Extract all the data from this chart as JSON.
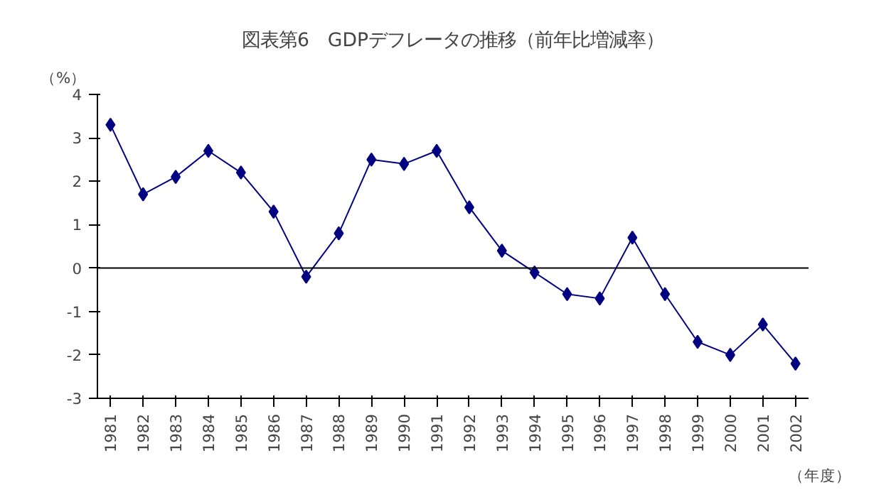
{
  "chart_data": {
    "type": "line",
    "title": "図表第6　GDPデフレータの推移（前年比増減率）",
    "ylabel": "（%）",
    "xlabel": "（年度）",
    "categories": [
      "1981",
      "1982",
      "1983",
      "1984",
      "1985",
      "1986",
      "1987",
      "1988",
      "1989",
      "1990",
      "1991",
      "1992",
      "1993",
      "1994",
      "1995",
      "1996",
      "1997",
      "1998",
      "1999",
      "2000",
      "2001",
      "2002"
    ],
    "series": [
      {
        "color": "#000080",
        "values": [
          3.3,
          1.7,
          2.1,
          2.7,
          2.2,
          1.3,
          -0.2,
          0.8,
          2.5,
          2.4,
          2.7,
          1.4,
          0.4,
          -0.1,
          -0.6,
          -0.7,
          0.7,
          -0.6,
          -1.7,
          -2.0,
          -1.3,
          -2.2
        ]
      }
    ],
    "ylim": [
      -3,
      4
    ],
    "yticks": [
      -3,
      -2,
      -1,
      0,
      1,
      2,
      3,
      4
    ],
    "ref_lines": [
      {
        "axis": "y",
        "value": 0,
        "color": "#000000"
      }
    ],
    "grid": false,
    "marker": "diamond",
    "line_style": "solid"
  }
}
